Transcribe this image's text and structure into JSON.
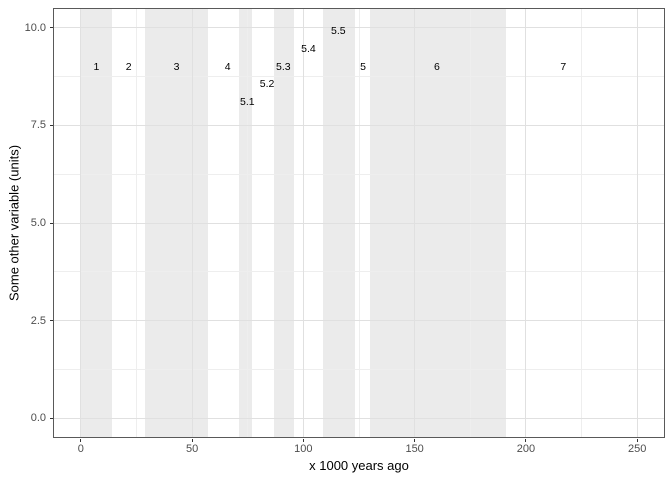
{
  "chart": {
    "x_title": "x 1000 years ago",
    "y_title": "Some other variable (units)"
  },
  "chart_data": {
    "type": "rect-bands",
    "title": "",
    "xlabel": "x 1000 years ago",
    "ylabel": "Some other variable (units)",
    "xlim": [
      -12.5,
      262.5
    ],
    "ylim": [
      -0.5,
      10.5
    ],
    "grid": "on",
    "legend": "none",
    "x_major_ticks": [
      0,
      50,
      100,
      150,
      200,
      250
    ],
    "x_tick_labels": [
      "0",
      "50",
      "100",
      "150",
      "200",
      "250"
    ],
    "x_minor_gridlines": [
      25,
      75,
      125,
      175,
      225
    ],
    "y_major_ticks": [
      0,
      2.5,
      5,
      7.5,
      10
    ],
    "y_tick_labels": [
      "0.0",
      "2.5",
      "5.0",
      "7.5",
      "10.0"
    ],
    "y_minor_gridlines": [
      1.25,
      3.75,
      6.25,
      8.75
    ],
    "stages": [
      {
        "label": "1",
        "start": 0,
        "end": 14,
        "shaded": true,
        "label_x": 7,
        "label_y": 9
      },
      {
        "label": "2",
        "start": 14,
        "end": 29,
        "shaded": false,
        "label_x": 21.5,
        "label_y": 9
      },
      {
        "label": "3",
        "start": 29,
        "end": 57,
        "shaded": true,
        "label_x": 43,
        "label_y": 9
      },
      {
        "label": "4",
        "start": 57,
        "end": 71,
        "shaded": false,
        "label_x": 66,
        "label_y": 9
      },
      {
        "label": "5.1",
        "start": 71,
        "end": 77,
        "shaded": true,
        "label_x": 74.8,
        "label_y": 8.1
      },
      {
        "label": "5.2",
        "start": 77,
        "end": 87,
        "shaded": false,
        "label_x": 83.7,
        "label_y": 8.55
      },
      {
        "label": "5.3",
        "start": 87,
        "end": 96,
        "shaded": true,
        "label_x": 91,
        "label_y": 9
      },
      {
        "label": "5.4",
        "start": 96,
        "end": 109,
        "shaded": false,
        "label_x": 102.3,
        "label_y": 9.45
      },
      {
        "label": "5.5",
        "start": 109,
        "end": 123,
        "shaded": true,
        "label_x": 115.7,
        "label_y": 9.9
      },
      {
        "label": "5",
        "start": 123,
        "end": 130,
        "shaded": false,
        "label_x": 126.8,
        "label_y": 9
      },
      {
        "label": "6",
        "start": 130,
        "end": 191,
        "shaded": true,
        "label_x": 160,
        "label_y": 9
      },
      {
        "label": "7",
        "start": 191,
        "end": 243,
        "shaded": false,
        "label_x": 216.8,
        "label_y": 9
      }
    ],
    "colors": {
      "band_fill": "#ebebeb",
      "panel_background": "#ffffff",
      "grid_major": "#e0e0e0",
      "grid_minor": "#eeeeee",
      "panel_border": "#595959",
      "tick_mark": "#333333",
      "tick_label": "#4d4d4d",
      "axis_title": "#000000",
      "stage_label": "#000000"
    }
  }
}
